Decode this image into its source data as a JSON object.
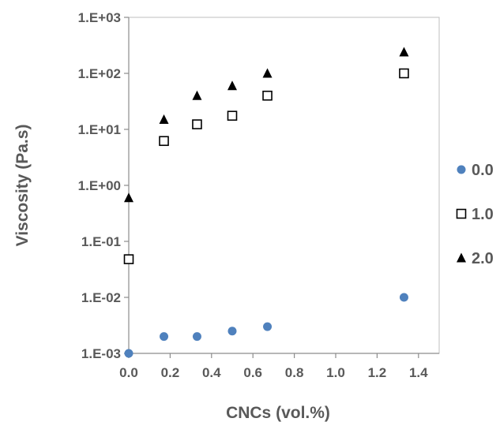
{
  "chart_data": {
    "type": "scatter",
    "xlabel": "CNCs (vol.%)",
    "ylabel": "Viscosity (Pa.s)",
    "xlim": [
      0,
      1.5
    ],
    "ylim": [
      0.001,
      1000
    ],
    "yscale": "log",
    "grid": false,
    "legend_position": "right",
    "x_ticks": [
      "0.0",
      "0.2",
      "0.4",
      "0.6",
      "0.8",
      "1.0",
      "1.2",
      "1.4"
    ],
    "y_ticks": [
      "1.E-03",
      "1.E-02",
      "1.E-01",
      "1.E+00",
      "1.E+01",
      "1.E+02",
      "1.E+03"
    ],
    "series": [
      {
        "name": "0.0",
        "marker": "circle",
        "color": "#4f81bd",
        "points": [
          [
            0.0,
            0.001
          ],
          [
            0.17,
            0.002
          ],
          [
            0.33,
            0.002
          ],
          [
            0.5,
            0.0025
          ],
          [
            0.67,
            0.003
          ],
          [
            1.33,
            0.01
          ]
        ]
      },
      {
        "name": "1.0",
        "marker": "square-open",
        "color": "#000000",
        "points": [
          [
            0.0,
            0.048
          ],
          [
            0.17,
            6.2
          ],
          [
            0.33,
            12.3
          ],
          [
            0.5,
            17.5
          ],
          [
            0.67,
            40
          ],
          [
            1.33,
            100
          ]
        ]
      },
      {
        "name": "2.0",
        "marker": "triangle",
        "color": "#000000",
        "points": [
          [
            0.0,
            0.6
          ],
          [
            0.17,
            15
          ],
          [
            0.33,
            40
          ],
          [
            0.5,
            60
          ],
          [
            0.67,
            100
          ],
          [
            1.33,
            240
          ]
        ]
      }
    ]
  }
}
